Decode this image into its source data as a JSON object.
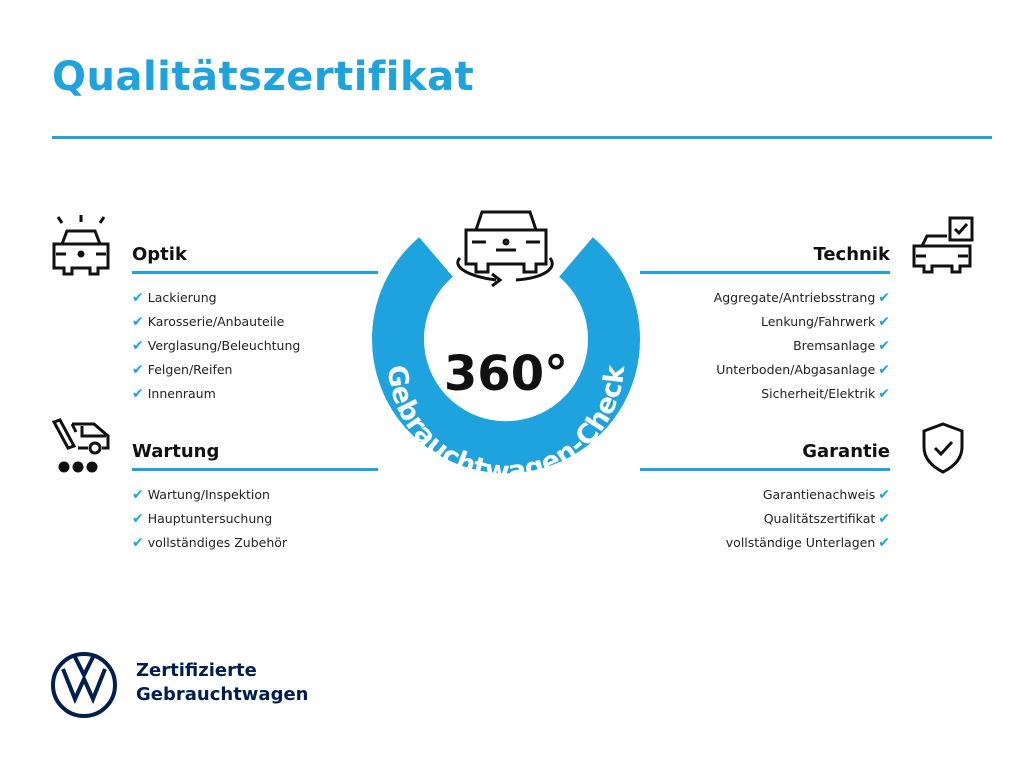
{
  "title": "Qualitätszertifikat",
  "center": {
    "big": "360°",
    "ring_text": "Gebrauchtwagen-Check"
  },
  "sections": {
    "optik": {
      "title": "Optik",
      "icon": "car-spotlight-icon",
      "items": [
        "Lackierung",
        "Karosserie/Anbauteile",
        "Verglasung/Beleuchtung",
        "Felgen/Reifen",
        "Innenraum"
      ]
    },
    "wartung": {
      "title": "Wartung",
      "icon": "service-van-icon",
      "items": [
        "Wartung/Inspektion",
        "Hauptuntersuchung",
        "vollständiges Zubehör"
      ]
    },
    "technik": {
      "title": "Technik",
      "icon": "car-checkbox-icon",
      "items": [
        "Aggregate/Antriebsstrang",
        "Lenkung/Fahrwerk",
        "Bremsanlage",
        "Unterboden/Abgasanlage",
        "Sicherheit/Elektrik"
      ]
    },
    "garantie": {
      "title": "Garantie",
      "icon": "shield-check-icon",
      "items": [
        "Garantienachweis",
        "Qualitätszertifikat",
        "vollständige Unterlagen"
      ]
    }
  },
  "check_glyph": "✔",
  "brand": {
    "line1": "Zertifizierte",
    "line2": "Gebrauchtwagen",
    "logo": "VW"
  },
  "colors": {
    "accent": "#1ea3de",
    "brand": "#001e50"
  }
}
